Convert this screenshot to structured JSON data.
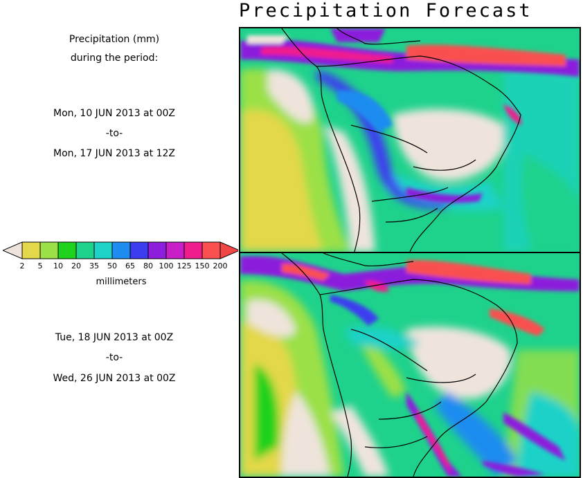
{
  "title": "Precipitation Forecast",
  "description": {
    "line1": "Precipitation (mm)",
    "line2": "during the period:"
  },
  "period1": {
    "start": "Mon, 10 JUN 2013 at 00Z",
    "sep": "-to-",
    "end": "Mon, 17 JUN 2013 at 12Z"
  },
  "period2": {
    "start": "Tue, 18 JUN 2013 at 00Z",
    "sep": "-to-",
    "end": "Wed, 26 JUN 2013 at 00Z"
  },
  "colorbar": {
    "unit": "millimeters",
    "ticks": [
      "2",
      "5",
      "10",
      "20",
      "35",
      "50",
      "65",
      "80",
      "100",
      "125",
      "150",
      "200"
    ],
    "colors": [
      "#efe4dc",
      "#e3d84a",
      "#9be046",
      "#1ed21e",
      "#1ed28c",
      "#1ed2c8",
      "#1e8cf0",
      "#3c3cf0",
      "#8c1edc",
      "#c81ec8",
      "#f01e8c",
      "#fa5050",
      "#f04646"
    ]
  },
  "maps": [
    {
      "panel": "forecast-period-1"
    },
    {
      "panel": "forecast-period-2"
    }
  ]
}
